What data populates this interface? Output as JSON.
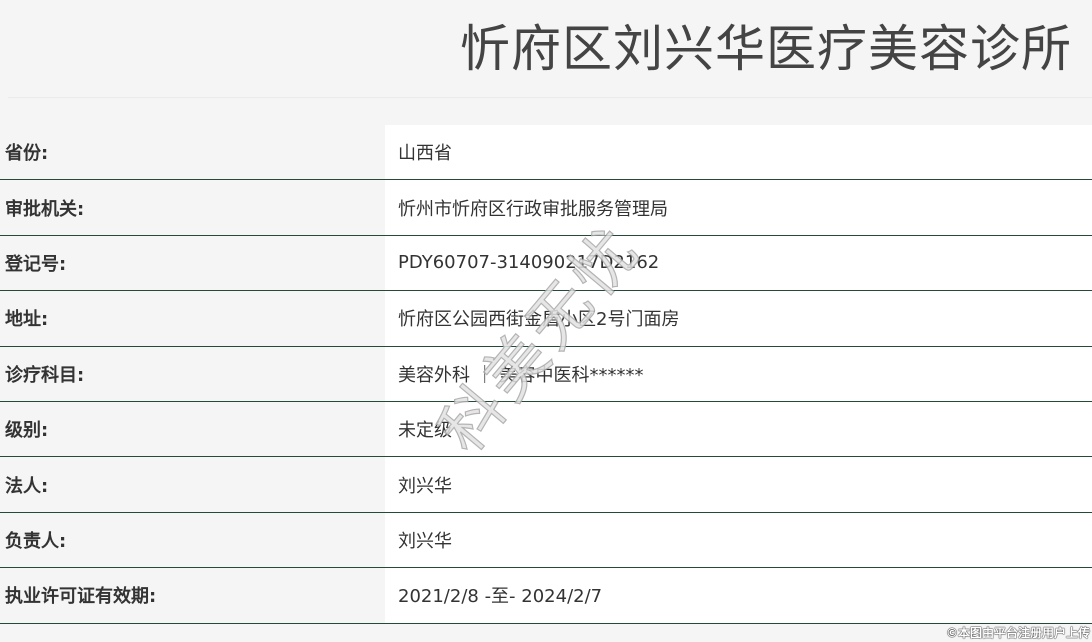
{
  "header": {
    "title": "忻府区刘兴华医疗美容诊所"
  },
  "rows": [
    {
      "label": "省份:",
      "value": "山西省"
    },
    {
      "label": "审批机关:",
      "value": "忻州市忻府区行政审批服务管理局"
    },
    {
      "label": "登记号:",
      "value": "PDY60707-314090217D2162"
    },
    {
      "label": "地址:",
      "value": "忻府区公园西街金盾小区2号门面房"
    },
    {
      "label": "诊疗科目:",
      "value": "美容外科 ｜ 美容中医科******"
    },
    {
      "label": "级别:",
      "value": "未定级"
    },
    {
      "label": "法人:",
      "value": "刘兴华"
    },
    {
      "label": "负责人:",
      "value": "刘兴华"
    },
    {
      "label": "执业许可证有效期:",
      "value": "2021/2/8 -至- 2024/2/7"
    }
  ],
  "watermark": "科美无忧",
  "footer": "©本图由平台注册用户上传"
}
